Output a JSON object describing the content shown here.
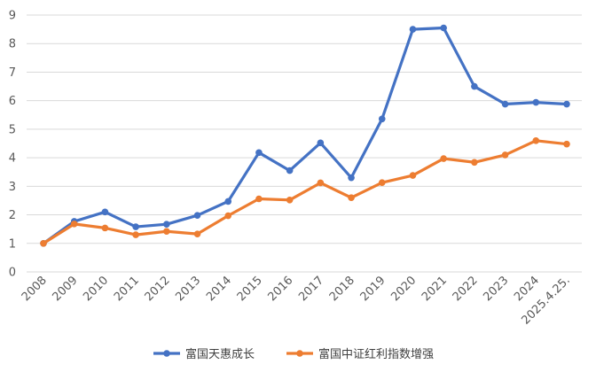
{
  "chart_data": {
    "type": "line",
    "title": "",
    "xlabel": "",
    "ylabel": "",
    "ylim": [
      0,
      9
    ],
    "y_ticks": [
      "0",
      "1",
      "2",
      "3",
      "4",
      "5",
      "6",
      "7",
      "8",
      "9"
    ],
    "categories": [
      "2008",
      "2009",
      "2010",
      "2011",
      "2012",
      "2013",
      "2014",
      "2015",
      "2016",
      "2017",
      "2018",
      "2019",
      "2020",
      "2021",
      "2022",
      "2023",
      "2024",
      "2025.4.25."
    ],
    "grid": true,
    "legend_position": "bottom",
    "series": [
      {
        "name": "富国天惠成长",
        "color": "#4472C4",
        "values": [
          1.0,
          1.77,
          2.1,
          1.58,
          1.67,
          1.98,
          2.47,
          4.18,
          3.55,
          4.52,
          3.3,
          5.36,
          8.5,
          8.55,
          6.5,
          5.88,
          5.94,
          5.88
        ]
      },
      {
        "name": "富国中证红利指数增强",
        "color": "#ED7D31",
        "values": [
          1.0,
          1.68,
          1.54,
          1.3,
          1.42,
          1.33,
          1.97,
          2.56,
          2.52,
          3.12,
          2.6,
          3.13,
          3.38,
          3.97,
          3.84,
          4.1,
          4.6,
          4.48
        ]
      }
    ]
  }
}
